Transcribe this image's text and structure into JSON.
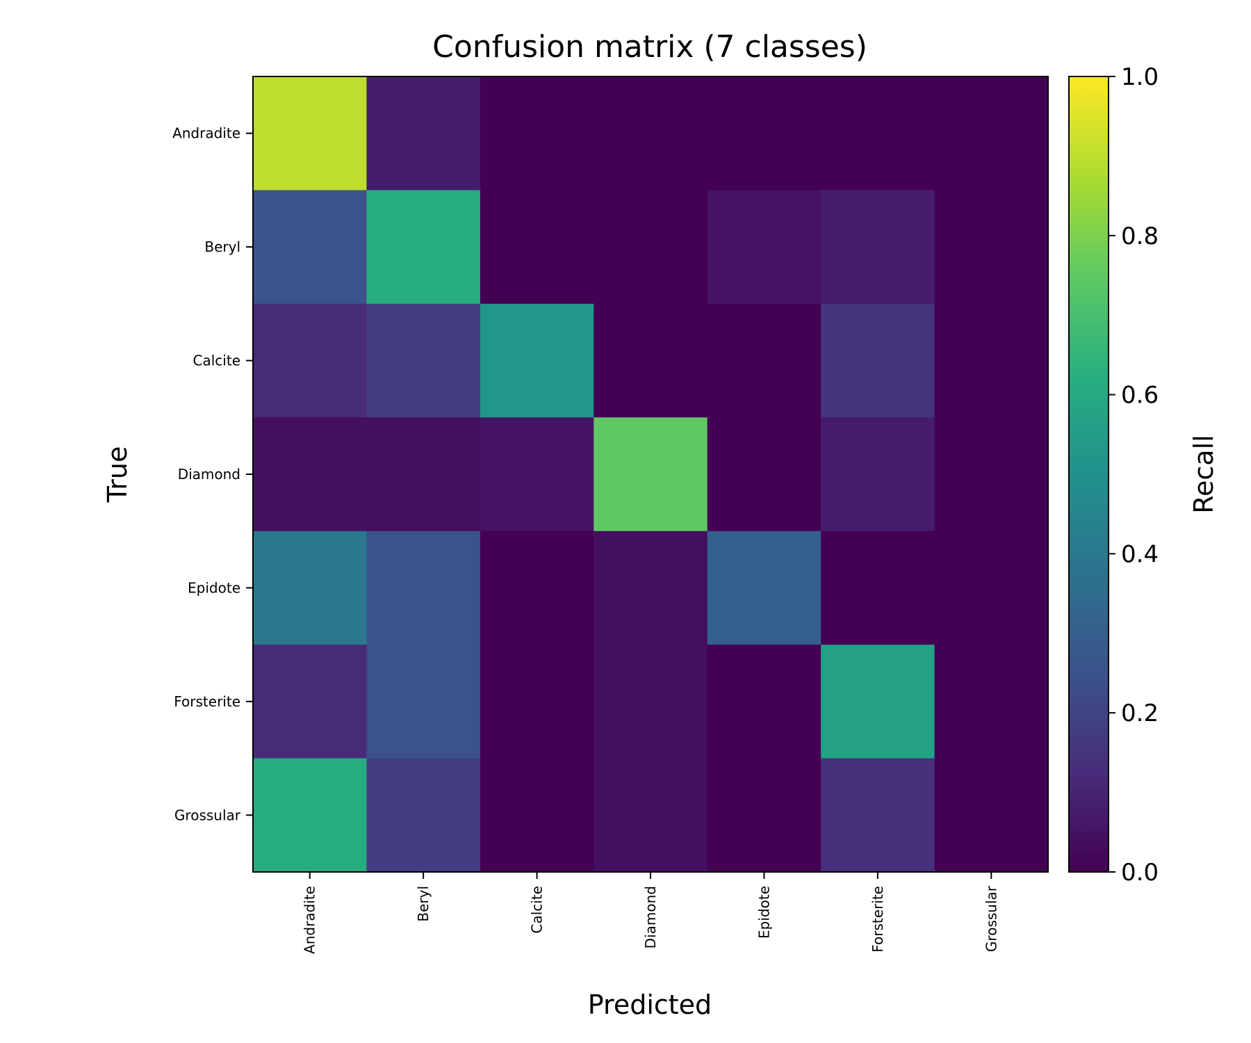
{
  "chart_data": {
    "type": "heatmap",
    "title": "Confusion matrix (7 classes)",
    "xlabel": "Predicted",
    "ylabel": "True",
    "colorbar_label": "Recall",
    "colormap": "viridis",
    "clim": [
      0.0,
      1.0
    ],
    "colorbar_ticks": [
      "0.0",
      "0.2",
      "0.4",
      "0.6",
      "0.8",
      "1.0"
    ],
    "x_categories": [
      "Andradite",
      "Beryl",
      "Calcite",
      "Diamond",
      "Epidote",
      "Forsterite",
      "Grossular"
    ],
    "y_categories": [
      "Andradite",
      "Beryl",
      "Calcite",
      "Diamond",
      "Epidote",
      "Forsterite",
      "Grossular"
    ],
    "matrix": [
      [
        0.9,
        0.08,
        0.0,
        0.0,
        0.0,
        0.0,
        0.0
      ],
      [
        0.25,
        0.62,
        0.0,
        0.0,
        0.05,
        0.08,
        0.0
      ],
      [
        0.12,
        0.18,
        0.52,
        0.0,
        0.0,
        0.15,
        0.0
      ],
      [
        0.04,
        0.04,
        0.05,
        0.75,
        0.0,
        0.08,
        0.0
      ],
      [
        0.4,
        0.25,
        0.0,
        0.04,
        0.3,
        0.0,
        0.0
      ],
      [
        0.12,
        0.25,
        0.0,
        0.04,
        0.0,
        0.57,
        0.0
      ],
      [
        0.62,
        0.18,
        0.0,
        0.04,
        0.0,
        0.14,
        0.0
      ]
    ]
  }
}
